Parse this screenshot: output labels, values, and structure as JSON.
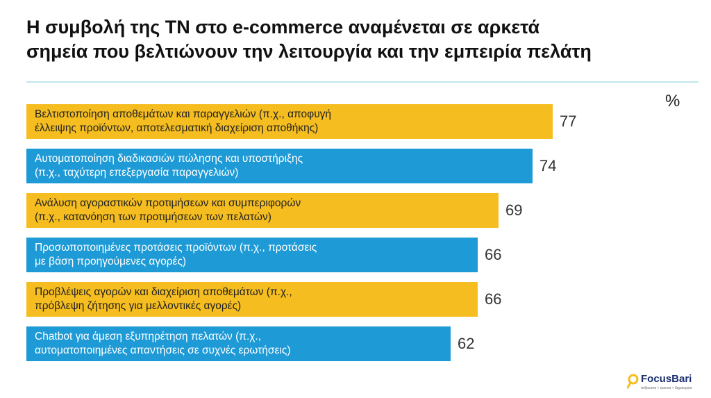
{
  "title_line1": "Η συμβολή της ΤΝ στο e-commerce αναμένεται σε αρκετά",
  "title_line2": "σημεία που βελτιώνουν την λειτουργία και την εμπειρία πελάτη",
  "colors": {
    "yellow": "#f5bd1f",
    "blue": "#1e9ad6"
  },
  "chart_data": {
    "type": "bar",
    "orientation": "horizontal",
    "unit": "%",
    "xlim": [
      0,
      100
    ],
    "grid": false,
    "categories": [
      "Βελτιστοποίηση αποθεμάτων και παραγγελιών (π.χ., αποφυγή έλλειψης προϊόντων, αποτελεσματική διαχείριση αποθήκης)",
      "Αυτοματοποίηση διαδικασιών πώλησης και υποστήριξης (π.χ., ταχύτερη επεξεργασία παραγγελιών)",
      "Ανάλυση αγοραστικών προτιμήσεων και συμπεριφορών (π.χ., κατανόηση των προτιμήσεων των πελατών)",
      "Προσωποποιημένες προτάσεις προϊόντων (π.χ., προτάσεις με βάση προηγούμενες αγορές)",
      "Προβλέψεις αγορών και διαχείριση αποθεμάτων (π.χ., πρόβλεψη ζήτησης για μελλοντικές αγορές)",
      "Chatbot για άμεση εξυπηρέτηση πελατών (π.χ., αυτοματοποιημένες απαντήσεις σε συχνές ερωτήσεις)"
    ],
    "values": [
      77,
      74,
      69,
      66,
      66,
      62
    ],
    "bars": [
      {
        "line1": "Βελτιστοποίηση αποθεμάτων και παραγγελιών (π.χ., αποφυγή",
        "line2": "έλλειψης προϊόντων, αποτελεσματική διαχείριση αποθήκης)",
        "value": 77,
        "color": "yellow"
      },
      {
        "line1": "Αυτοματοποίηση διαδικασιών πώλησης και υποστήριξης",
        "line2": "(π.χ., ταχύτερη επεξεργασία παραγγελιών)",
        "value": 74,
        "color": "blue"
      },
      {
        "line1": "Ανάλυση αγοραστικών προτιμήσεων και συμπεριφορών",
        "line2": "(π.χ., κατανόηση των προτιμήσεων των πελατών)",
        "value": 69,
        "color": "yellow"
      },
      {
        "line1": "Προσωποποιημένες προτάσεις προϊόντων (π.χ., προτάσεις",
        "line2": "με βάση προηγούμενες αγορές)",
        "value": 66,
        "color": "blue"
      },
      {
        "line1": "Προβλέψεις αγορών και διαχείριση αποθεμάτων (π.χ.,",
        "line2": "πρόβλεψη ζήτησης για μελλοντικές αγορές)",
        "value": 66,
        "color": "yellow"
      },
      {
        "line1": "Chatbot για άμεση εξυπηρέτηση πελατών (π.χ.,",
        "line2": "αυτοματοποιημένες απαντήσεις σε συχνές ερωτήσεις)",
        "value": 62,
        "color": "blue"
      }
    ]
  },
  "logo": {
    "name": "FocusBari",
    "tagline": "άνθρωποι + έρευνα + δημιουργία"
  }
}
